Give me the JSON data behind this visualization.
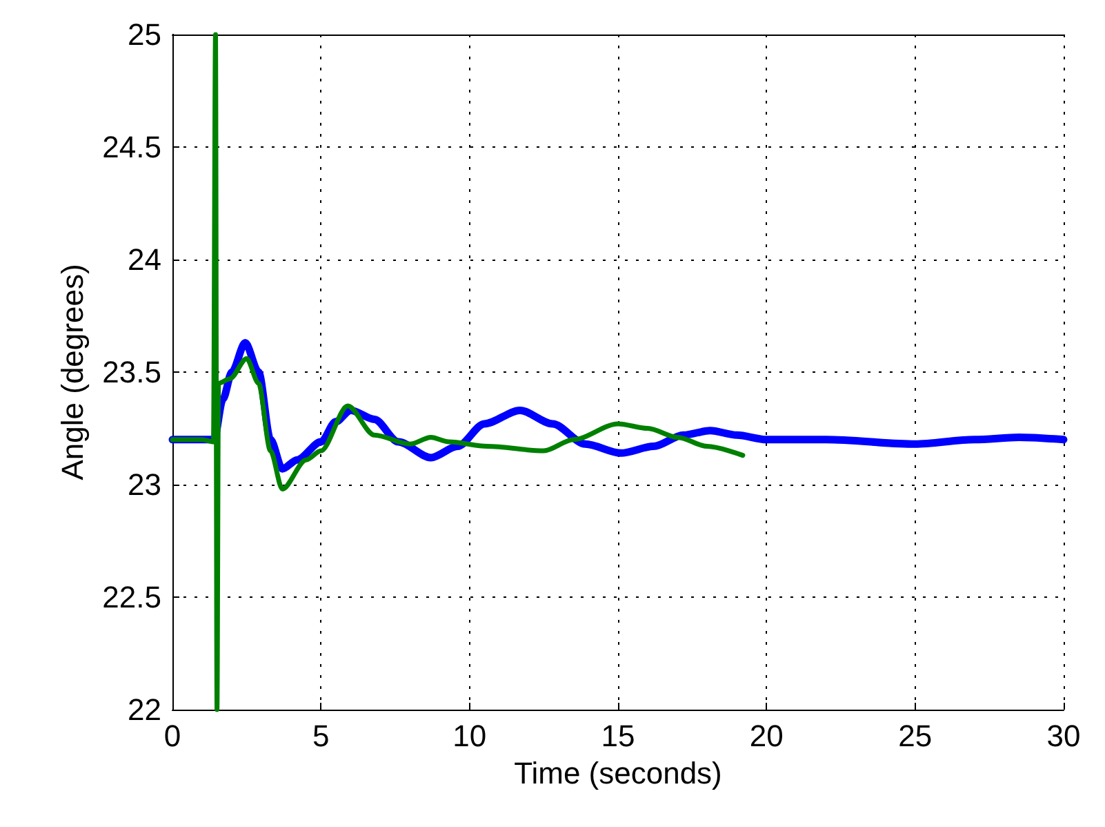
{
  "chart_data": {
    "type": "line",
    "xlabel": "Time (seconds)",
    "ylabel": "Angle (degrees)",
    "xlim": [
      0,
      30
    ],
    "ylim": [
      22,
      25
    ],
    "xticks": [
      0,
      5,
      10,
      15,
      20,
      25,
      30
    ],
    "yticks": [
      22,
      22.5,
      23,
      23.5,
      24,
      24.5,
      25
    ],
    "grid": true,
    "line_style": "solid",
    "marker": "none",
    "series": [
      {
        "color": "#0000ff",
        "x": [
          0,
          1,
          1.4,
          1.7,
          2.0,
          2.45,
          2.9,
          3.3,
          3.7,
          4.2,
          5,
          5.5,
          6,
          6.8,
          7.6,
          8.7,
          9.6,
          10.5,
          11.7,
          12.8,
          13.9,
          15.1,
          16.2,
          17.2,
          18.1,
          19,
          20,
          22,
          25,
          27,
          28.5,
          30
        ],
        "values": [
          23.2,
          23.2,
          23.2,
          23.38,
          23.5,
          23.63,
          23.5,
          23.2,
          23.07,
          23.11,
          23.19,
          23.28,
          23.33,
          23.29,
          23.19,
          23.12,
          23.17,
          23.27,
          23.33,
          23.27,
          23.18,
          23.14,
          23.17,
          23.22,
          23.24,
          23.22,
          23.2,
          23.2,
          23.18,
          23.2,
          23.21,
          23.2
        ]
      },
      {
        "color": "#008000",
        "x": [
          0,
          1,
          1.38,
          1.45,
          1.5,
          1.55,
          1.93,
          2.5,
          2.9,
          3.3,
          3.7,
          4.5,
          5,
          5.9,
          6.8,
          8,
          8.7,
          9.3,
          10.6,
          12.5,
          13.5,
          15,
          16,
          17,
          18,
          19.2
        ],
        "values": [
          23.2,
          23.2,
          23.19,
          25,
          22,
          23.45,
          23.47,
          23.56,
          23.45,
          23.15,
          22.98,
          23.11,
          23.15,
          23.35,
          23.22,
          23.18,
          23.21,
          23.19,
          23.17,
          23.15,
          23.2,
          23.27,
          23.25,
          23.21,
          23.17,
          23.13
        ]
      }
    ]
  }
}
